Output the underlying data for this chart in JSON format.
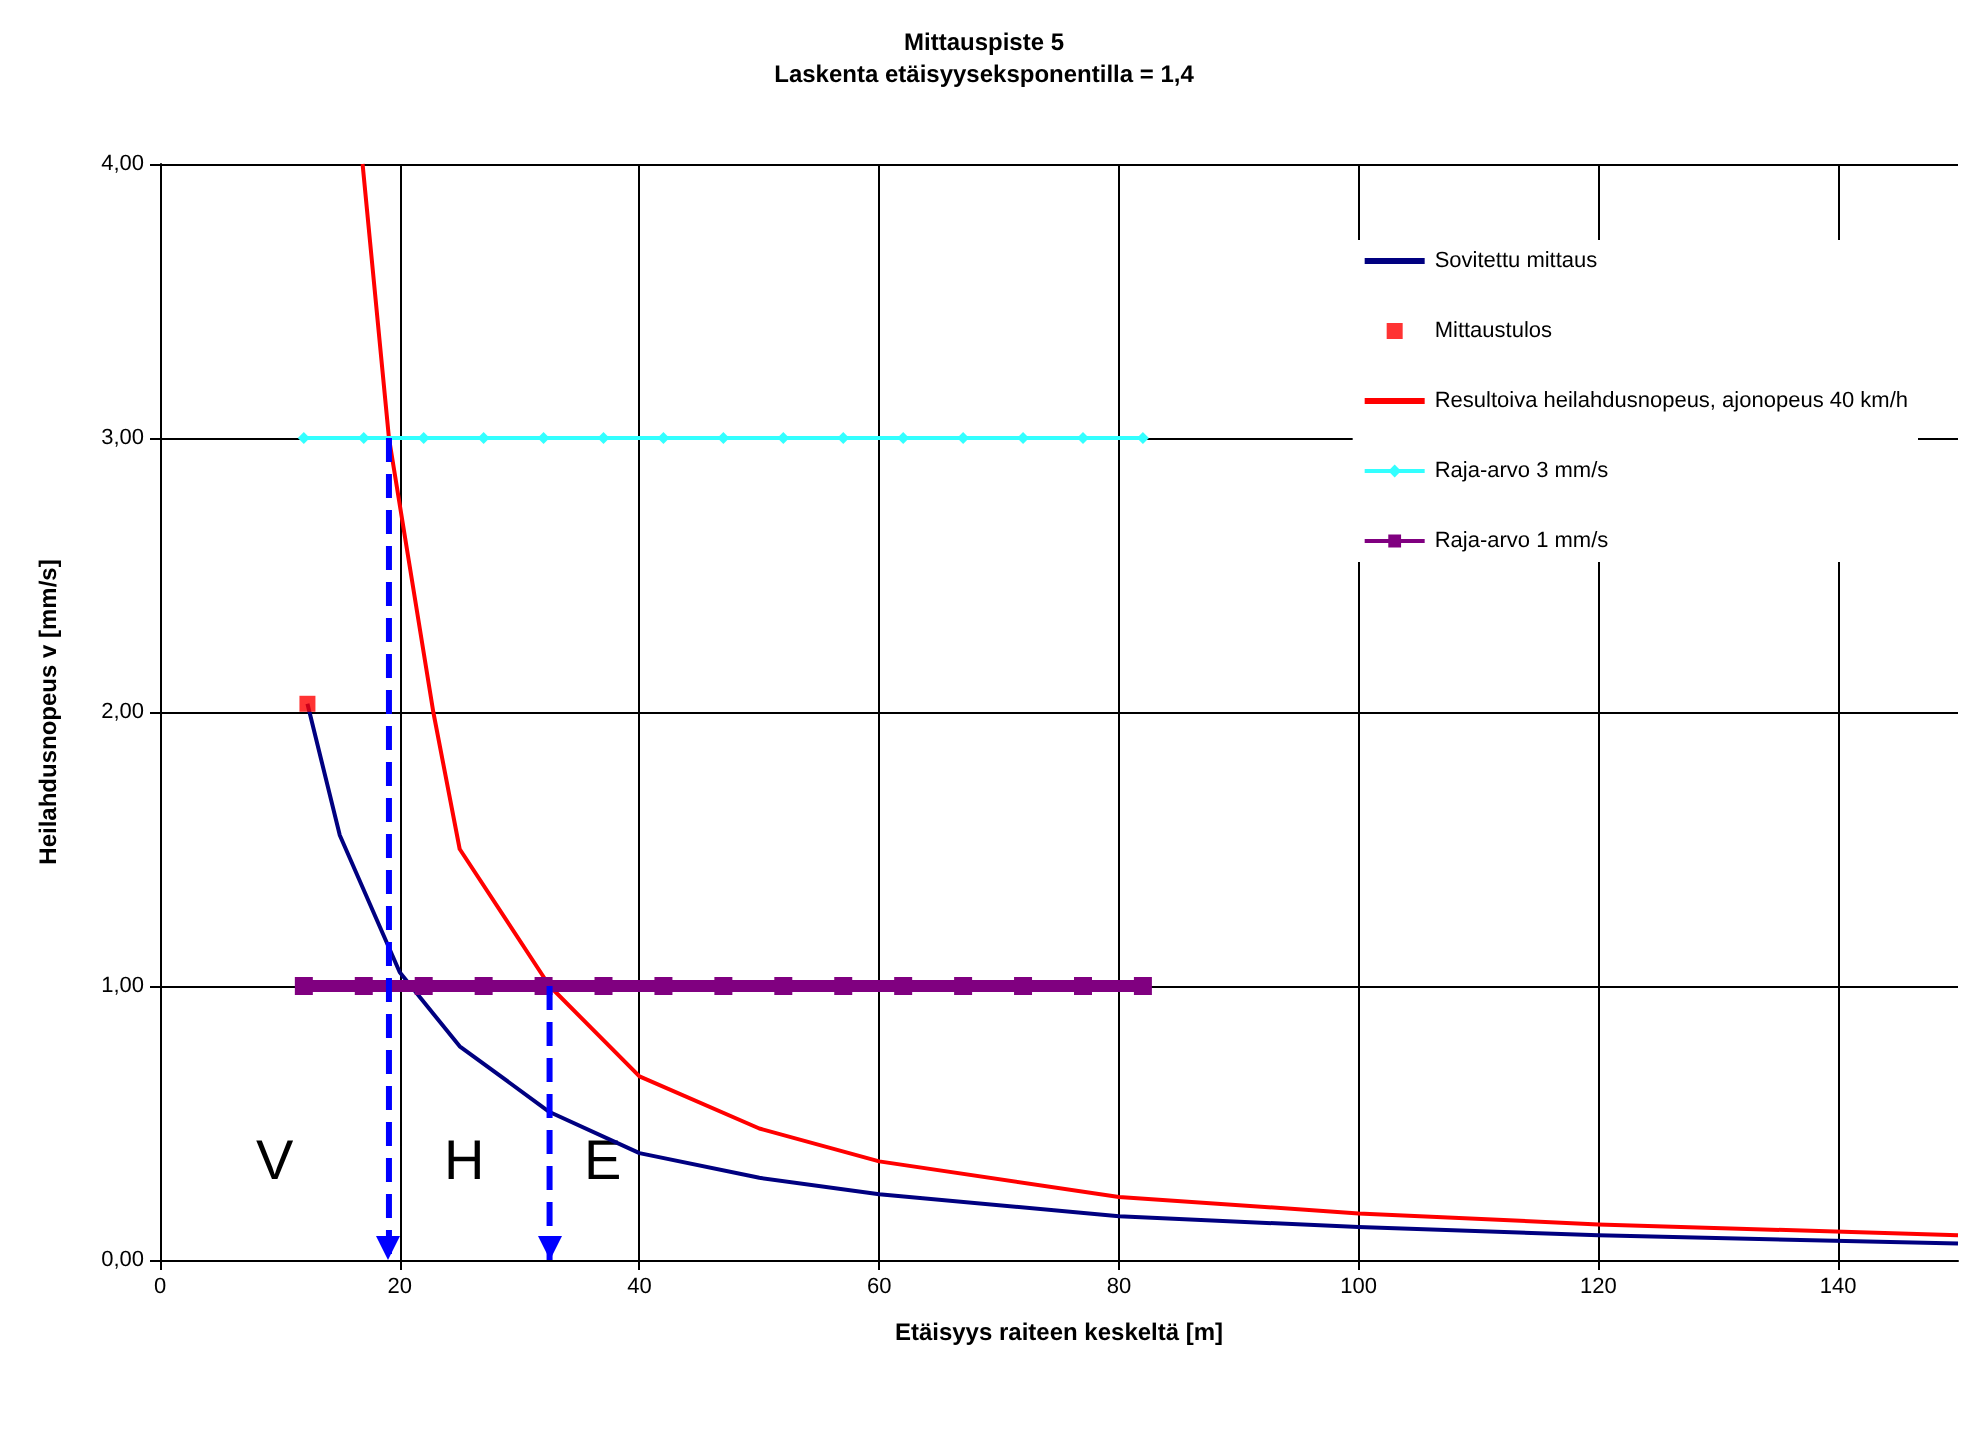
{
  "chart_data": {
    "type": "line",
    "title": "Mittauspiste 5",
    "subtitle": "Laskenta etäisyyseksponentilla = 1,4",
    "xlabel": "Etäisyys raiteen keskeltä [m]",
    "ylabel": "Heilahdusnopeus v [mm/s]",
    "xlim": [
      0,
      150
    ],
    "xticks": [
      0,
      20,
      40,
      60,
      80,
      100,
      120,
      140
    ],
    "ylim": [
      0,
      4
    ],
    "yticks": [
      {
        "value": 0,
        "label": "0,00"
      },
      {
        "value": 1,
        "label": "1,00"
      },
      {
        "value": 2,
        "label": "2,00"
      },
      {
        "value": 3,
        "label": "3,00"
      },
      {
        "value": 4,
        "label": "4,00"
      }
    ],
    "grid": true,
    "legend": "top right",
    "marker": "none",
    "series": [
      {
        "name": "Sovitettu mittaus",
        "color": "#000080",
        "x": [
          12.3,
          15,
          20,
          25,
          32.5,
          40,
          50,
          60,
          80,
          100,
          120,
          150
        ],
        "values": [
          2.03,
          1.55,
          1.05,
          0.78,
          0.54,
          0.39,
          0.3,
          0.24,
          0.16,
          0.12,
          0.09,
          0.06
        ]
      },
      {
        "name": "Mittaustulos",
        "type": "scatter",
        "color": "#ff0000",
        "marker": "square",
        "x": [
          12.3
        ],
        "values": [
          2.03
        ]
      },
      {
        "name": "Resultoiva heilahdusnopeus, ajonopeus 40 km/h",
        "color": "#ff0000",
        "x": [
          16.9,
          19.1,
          22.8,
          25,
          32.5,
          40,
          50,
          60,
          80,
          100,
          120,
          150
        ],
        "values": [
          4,
          3,
          2,
          1.5,
          1,
          0.67,
          0.48,
          0.36,
          0.23,
          0.17,
          0.13,
          0.09
        ]
      },
      {
        "name": "Raja-arvo 3 mm/s",
        "color": "#33ffff",
        "marker": "diamond",
        "x": [
          12,
          17,
          22,
          27,
          32,
          37,
          42,
          47,
          52,
          57,
          62,
          67,
          72,
          77,
          82
        ],
        "values": [
          3,
          3,
          3,
          3,
          3,
          3,
          3,
          3,
          3,
          3,
          3,
          3,
          3,
          3,
          3
        ]
      },
      {
        "name": "Raja-arvo 1 mm/s",
        "color": "#800080",
        "marker": "square",
        "x": [
          12,
          17,
          22,
          27,
          32,
          37,
          42,
          47,
          52,
          57,
          62,
          67,
          72,
          77,
          82
        ],
        "values": [
          1,
          1,
          1,
          1,
          1,
          1,
          1,
          1,
          1,
          1,
          1,
          1,
          1,
          1,
          1
        ]
      },
      {
        "color": "#0000ff",
        "line_style": "dashed",
        "x": [
          19.1,
          19.1
        ],
        "values": [
          3,
          0
        ]
      },
      {
        "color": "#0000ff",
        "line_style": "dashed",
        "x": [
          32.5,
          32.5
        ],
        "values": [
          1,
          0
        ]
      }
    ],
    "annotations": [
      "V",
      "H",
      "E"
    ]
  }
}
